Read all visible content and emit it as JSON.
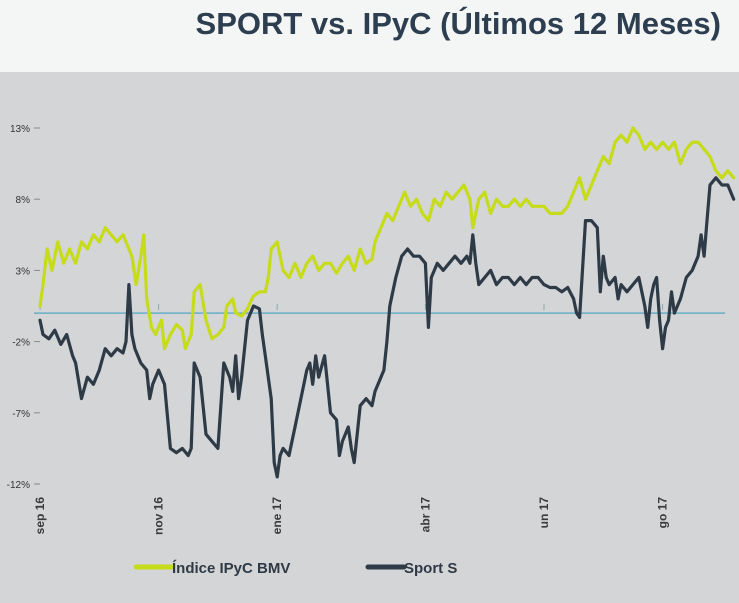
{
  "title": "SPORT vs. IPyC (Últimos 12 Meses)",
  "chart_data": {
    "type": "line",
    "title": "SPORT vs. IPyC (Últimos 12 Meses)",
    "x_tick_labels": [
      "sep 16",
      "nov 16",
      "ene 17",
      "abr 17",
      "un 17",
      "go 17"
    ],
    "x_tick_positions": [
      0,
      2,
      4,
      6.5,
      8.5,
      10.5
    ],
    "x_range": [
      0,
      11.3
    ],
    "y_tick_labels": [
      "13%",
      "8%",
      "3%",
      "-2%",
      "-7%",
      "-12%"
    ],
    "y_tick_values": [
      13,
      8,
      3,
      -2,
      -7,
      -12
    ],
    "ylim": [
      -12,
      13
    ],
    "reference_line": 0,
    "grid": false,
    "legend_position": "bottom",
    "colors": {
      "ipyc": "#c6dc1a",
      "sport": "#2e3b47",
      "reference": "#6aaec6"
    },
    "series": [
      {
        "name": "Índice IPyC BMV",
        "key": "ipyc",
        "points": [
          [
            0.0,
            0.5
          ],
          [
            0.05,
            2.0
          ],
          [
            0.12,
            4.5
          ],
          [
            0.2,
            3.0
          ],
          [
            0.3,
            5.0
          ],
          [
            0.4,
            3.5
          ],
          [
            0.5,
            4.5
          ],
          [
            0.6,
            3.5
          ],
          [
            0.7,
            5.0
          ],
          [
            0.8,
            4.5
          ],
          [
            0.9,
            5.5
          ],
          [
            1.0,
            5.0
          ],
          [
            1.1,
            6.0
          ],
          [
            1.2,
            5.5
          ],
          [
            1.3,
            5.0
          ],
          [
            1.4,
            5.5
          ],
          [
            1.5,
            4.5
          ],
          [
            1.55,
            4.0
          ],
          [
            1.62,
            2.0
          ],
          [
            1.7,
            4.0
          ],
          [
            1.75,
            5.5
          ],
          [
            1.8,
            1.0
          ],
          [
            1.88,
            -1.0
          ],
          [
            1.95,
            -1.5
          ],
          [
            2.05,
            -0.5
          ],
          [
            2.1,
            -2.5
          ],
          [
            2.2,
            -1.5
          ],
          [
            2.3,
            -0.8
          ],
          [
            2.4,
            -1.2
          ],
          [
            2.45,
            -2.5
          ],
          [
            2.55,
            -1.5
          ],
          [
            2.6,
            1.5
          ],
          [
            2.7,
            2.0
          ],
          [
            2.8,
            -0.5
          ],
          [
            2.9,
            -1.8
          ],
          [
            3.0,
            -1.5
          ],
          [
            3.1,
            -1.0
          ],
          [
            3.15,
            0.5
          ],
          [
            3.25,
            1.0
          ],
          [
            3.3,
            0.0
          ],
          [
            3.4,
            -0.2
          ],
          [
            3.5,
            0.3
          ],
          [
            3.55,
            0.8
          ],
          [
            3.6,
            1.2
          ],
          [
            3.7,
            1.5
          ],
          [
            3.8,
            1.5
          ],
          [
            3.85,
            2.5
          ],
          [
            3.9,
            4.5
          ],
          [
            4.0,
            5.0
          ],
          [
            4.1,
            3.0
          ],
          [
            4.2,
            2.5
          ],
          [
            4.3,
            3.5
          ],
          [
            4.4,
            2.5
          ],
          [
            4.5,
            3.5
          ],
          [
            4.6,
            4.0
          ],
          [
            4.7,
            3.0
          ],
          [
            4.8,
            3.5
          ],
          [
            4.9,
            3.5
          ],
          [
            5.0,
            2.8
          ],
          [
            5.1,
            3.5
          ],
          [
            5.2,
            4.0
          ],
          [
            5.3,
            3.0
          ],
          [
            5.4,
            4.5
          ],
          [
            5.5,
            3.5
          ],
          [
            5.6,
            3.8
          ],
          [
            5.65,
            5.0
          ],
          [
            5.75,
            6.0
          ],
          [
            5.85,
            7.0
          ],
          [
            5.95,
            6.5
          ],
          [
            6.05,
            7.5
          ],
          [
            6.15,
            8.5
          ],
          [
            6.25,
            7.5
          ],
          [
            6.35,
            8.0
          ],
          [
            6.45,
            7.0
          ],
          [
            6.55,
            6.5
          ],
          [
            6.65,
            8.0
          ],
          [
            6.75,
            7.5
          ],
          [
            6.85,
            8.5
          ],
          [
            6.95,
            8.0
          ],
          [
            7.05,
            8.5
          ],
          [
            7.15,
            9.0
          ],
          [
            7.25,
            8.0
          ],
          [
            7.3,
            6.0
          ],
          [
            7.4,
            8.0
          ],
          [
            7.5,
            8.5
          ],
          [
            7.6,
            7.0
          ],
          [
            7.7,
            8.0
          ],
          [
            7.8,
            7.5
          ],
          [
            7.9,
            7.5
          ],
          [
            8.0,
            8.0
          ],
          [
            8.1,
            7.5
          ],
          [
            8.2,
            8.0
          ],
          [
            8.3,
            7.5
          ],
          [
            8.4,
            7.5
          ],
          [
            8.5,
            7.5
          ],
          [
            8.6,
            7.0
          ],
          [
            8.7,
            7.0
          ],
          [
            8.8,
            7.0
          ],
          [
            8.9,
            7.5
          ],
          [
            9.0,
            8.5
          ],
          [
            9.1,
            9.5
          ],
          [
            9.2,
            8.0
          ],
          [
            9.3,
            9.0
          ],
          [
            9.4,
            10.0
          ],
          [
            9.5,
            11.0
          ],
          [
            9.6,
            10.5
          ],
          [
            9.7,
            12.0
          ],
          [
            9.8,
            12.5
          ],
          [
            9.9,
            12.0
          ],
          [
            10.0,
            13.0
          ],
          [
            10.1,
            12.5
          ],
          [
            10.2,
            11.5
          ],
          [
            10.3,
            12.0
          ],
          [
            10.4,
            11.5
          ],
          [
            10.5,
            12.0
          ],
          [
            10.6,
            11.5
          ],
          [
            10.7,
            12.0
          ],
          [
            10.8,
            10.5
          ],
          [
            10.9,
            11.5
          ],
          [
            11.0,
            12.0
          ],
          [
            11.1,
            12.0
          ],
          [
            11.2,
            11.5
          ],
          [
            11.3,
            11.0
          ],
          [
            11.4,
            10.0
          ],
          [
            11.5,
            9.5
          ],
          [
            11.6,
            10.0
          ],
          [
            11.7,
            9.5
          ]
        ]
      },
      {
        "name": "Sport S",
        "key": "sport",
        "points": [
          [
            0.0,
            -0.5
          ],
          [
            0.05,
            -1.5
          ],
          [
            0.15,
            -1.8
          ],
          [
            0.25,
            -1.2
          ],
          [
            0.35,
            -2.2
          ],
          [
            0.45,
            -1.5
          ],
          [
            0.55,
            -3.0
          ],
          [
            0.6,
            -3.5
          ],
          [
            0.7,
            -6.0
          ],
          [
            0.8,
            -4.5
          ],
          [
            0.9,
            -5.0
          ],
          [
            1.0,
            -4.0
          ],
          [
            1.1,
            -2.5
          ],
          [
            1.2,
            -3.0
          ],
          [
            1.3,
            -2.5
          ],
          [
            1.4,
            -2.8
          ],
          [
            1.45,
            -2.0
          ],
          [
            1.5,
            2.0
          ],
          [
            1.55,
            -1.5
          ],
          [
            1.6,
            -2.5
          ],
          [
            1.7,
            -3.5
          ],
          [
            1.8,
            -4.0
          ],
          [
            1.85,
            -6.0
          ],
          [
            1.9,
            -5.0
          ],
          [
            2.0,
            -4.0
          ],
          [
            2.1,
            -5.0
          ],
          [
            2.2,
            -9.5
          ],
          [
            2.3,
            -9.8
          ],
          [
            2.4,
            -9.5
          ],
          [
            2.5,
            -10.0
          ],
          [
            2.55,
            -9.5
          ],
          [
            2.6,
            -3.5
          ],
          [
            2.7,
            -4.5
          ],
          [
            2.8,
            -8.5
          ],
          [
            2.9,
            -9.0
          ],
          [
            3.0,
            -9.5
          ],
          [
            3.1,
            -3.5
          ],
          [
            3.2,
            -4.5
          ],
          [
            3.25,
            -5.5
          ],
          [
            3.3,
            -3.0
          ],
          [
            3.35,
            -6.0
          ],
          [
            3.4,
            -4.5
          ],
          [
            3.5,
            -0.5
          ],
          [
            3.6,
            0.5
          ],
          [
            3.7,
            0.3
          ],
          [
            3.75,
            -1.5
          ],
          [
            3.8,
            -3.0
          ],
          [
            3.9,
            -6.0
          ],
          [
            3.95,
            -10.5
          ],
          [
            4.0,
            -11.5
          ],
          [
            4.05,
            -10.0
          ],
          [
            4.1,
            -9.5
          ],
          [
            4.2,
            -10.0
          ],
          [
            4.3,
            -8.0
          ],
          [
            4.4,
            -6.0
          ],
          [
            4.5,
            -4.0
          ],
          [
            4.55,
            -3.5
          ],
          [
            4.6,
            -5.0
          ],
          [
            4.65,
            -3.0
          ],
          [
            4.7,
            -4.5
          ],
          [
            4.8,
            -3.0
          ],
          [
            4.9,
            -7.0
          ],
          [
            5.0,
            -7.5
          ],
          [
            5.05,
            -10.0
          ],
          [
            5.1,
            -9.0
          ],
          [
            5.2,
            -8.0
          ],
          [
            5.25,
            -9.5
          ],
          [
            5.3,
            -10.5
          ],
          [
            5.35,
            -8.5
          ],
          [
            5.4,
            -6.5
          ],
          [
            5.5,
            -6.0
          ],
          [
            5.6,
            -6.5
          ],
          [
            5.65,
            -5.5
          ],
          [
            5.7,
            -5.0
          ],
          [
            5.8,
            -4.0
          ],
          [
            5.85,
            -2.0
          ],
          [
            5.9,
            0.5
          ],
          [
            6.0,
            2.5
          ],
          [
            6.1,
            4.0
          ],
          [
            6.2,
            4.5
          ],
          [
            6.3,
            4.0
          ],
          [
            6.4,
            4.0
          ],
          [
            6.5,
            3.5
          ],
          [
            6.55,
            -1.0
          ],
          [
            6.6,
            2.5
          ],
          [
            6.7,
            3.5
          ],
          [
            6.8,
            3.0
          ],
          [
            6.9,
            3.5
          ],
          [
            7.0,
            4.0
          ],
          [
            7.1,
            3.5
          ],
          [
            7.2,
            4.0
          ],
          [
            7.25,
            3.5
          ],
          [
            7.3,
            5.5
          ],
          [
            7.35,
            3.5
          ],
          [
            7.4,
            2.0
          ],
          [
            7.5,
            2.5
          ],
          [
            7.6,
            3.0
          ],
          [
            7.7,
            2.0
          ],
          [
            7.8,
            2.5
          ],
          [
            7.9,
            2.5
          ],
          [
            8.0,
            2.0
          ],
          [
            8.1,
            2.5
          ],
          [
            8.2,
            2.0
          ],
          [
            8.3,
            2.5
          ],
          [
            8.4,
            2.5
          ],
          [
            8.5,
            2.0
          ],
          [
            8.6,
            1.8
          ],
          [
            8.7,
            1.8
          ],
          [
            8.8,
            1.5
          ],
          [
            8.9,
            1.8
          ],
          [
            9.0,
            1.0
          ],
          [
            9.05,
            0.0
          ],
          [
            9.1,
            -0.3
          ],
          [
            9.2,
            6.5
          ],
          [
            9.3,
            6.5
          ],
          [
            9.4,
            6.0
          ],
          [
            9.45,
            1.5
          ],
          [
            9.5,
            4.0
          ],
          [
            9.55,
            2.5
          ],
          [
            9.6,
            2.0
          ],
          [
            9.7,
            2.5
          ],
          [
            9.75,
            1.0
          ],
          [
            9.8,
            2.0
          ],
          [
            9.9,
            1.5
          ],
          [
            10.0,
            2.0
          ],
          [
            10.1,
            2.5
          ],
          [
            10.2,
            0.5
          ],
          [
            10.25,
            -1.0
          ],
          [
            10.3,
            1.0
          ],
          [
            10.35,
            2.0
          ],
          [
            10.4,
            2.5
          ],
          [
            10.45,
            -0.5
          ],
          [
            10.5,
            -2.5
          ],
          [
            10.55,
            -1.0
          ],
          [
            10.6,
            -0.5
          ],
          [
            10.65,
            1.5
          ],
          [
            10.7,
            0.0
          ],
          [
            10.75,
            0.5
          ],
          [
            10.8,
            1.0
          ],
          [
            10.9,
            2.5
          ],
          [
            11.0,
            3.0
          ],
          [
            11.1,
            4.0
          ],
          [
            11.15,
            5.5
          ],
          [
            11.2,
            4.0
          ],
          [
            11.25,
            6.5
          ],
          [
            11.3,
            9.0
          ],
          [
            11.4,
            9.5
          ],
          [
            11.5,
            9.0
          ],
          [
            11.6,
            9.0
          ],
          [
            11.7,
            8.0
          ]
        ]
      }
    ]
  }
}
